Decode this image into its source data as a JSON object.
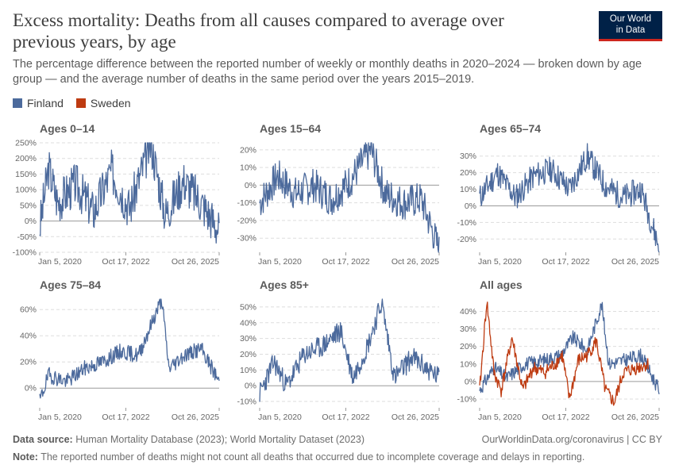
{
  "header": {
    "title": "Excess mortality: Deaths from all causes compared to average over previous years, by age",
    "subtitle": "The percentage difference between the reported number of weekly or monthly deaths in 2020–2024 — broken down by age group — and the average number of deaths in the same period over the years 2015–2019.",
    "logo_line1": "Our World",
    "logo_line2": "in Data"
  },
  "legend": [
    {
      "label": "Finland",
      "color": "#4c6a9c"
    },
    {
      "label": "Sweden",
      "color": "#be3b11"
    }
  ],
  "footer": {
    "source_label": "Data source:",
    "source_text": "Human Mortality Database (2023); World Mortality Dataset (2023)",
    "credit": "OurWorldinData.org/coronavirus | CC BY",
    "note_label": "Note:",
    "note_text": "The reported number of deaths might not count all deaths that occurred due to incomplete coverage and delays in reporting."
  },
  "chart_data": [
    {
      "type": "line",
      "title": "Ages 0–14",
      "x_ticks": [
        "Jan 5, 2020",
        "Oct 17, 2022",
        "Oct 26, 2025"
      ],
      "y_ticks": [
        "250%",
        "200%",
        "150%",
        "100%",
        "50%",
        "0%",
        "-50%",
        "-100%"
      ],
      "ylim": [
        -100,
        250
      ],
      "grid": true,
      "series": [
        {
          "name": "Finland",
          "color": "#4c6a9c",
          "anchors": [
            [
              0,
              -20
            ],
            [
              0.05,
              170
            ],
            [
              0.1,
              60
            ],
            [
              0.2,
              120
            ],
            [
              0.3,
              30
            ],
            [
              0.4,
              160
            ],
            [
              0.5,
              40
            ],
            [
              0.62,
              250
            ],
            [
              0.7,
              20
            ],
            [
              0.8,
              130
            ],
            [
              0.9,
              60
            ],
            [
              1,
              -30
            ]
          ],
          "noise": 70,
          "seed": 3
        }
      ]
    },
    {
      "type": "line",
      "title": "Ages 15–64",
      "x_ticks": [
        "Jan 5, 2020",
        "Oct 17, 2022",
        "Oct 26, 2025"
      ],
      "y_ticks": [
        "20%",
        "10%",
        "0%",
        "-10%",
        "-20%",
        "-30%"
      ],
      "ylim": [
        -38,
        24
      ],
      "grid": true,
      "series": [
        {
          "name": "Finland",
          "color": "#4c6a9c",
          "anchors": [
            [
              0,
              -10
            ],
            [
              0.1,
              5
            ],
            [
              0.2,
              -5
            ],
            [
              0.3,
              0
            ],
            [
              0.4,
              -8
            ],
            [
              0.5,
              2
            ],
            [
              0.62,
              20
            ],
            [
              0.7,
              -5
            ],
            [
              0.8,
              -10
            ],
            [
              0.9,
              -8
            ],
            [
              1,
              -37
            ]
          ],
          "noise": 10,
          "seed": 7
        }
      ]
    },
    {
      "type": "line",
      "title": "Ages 65–74",
      "x_ticks": [
        "Jan 5, 2020",
        "Oct 17, 2022",
        "Oct 26, 2025"
      ],
      "y_ticks": [
        "30%",
        "20%",
        "10%",
        "0%",
        "-10%",
        "-20%"
      ],
      "ylim": [
        -28,
        38
      ],
      "grid": true,
      "series": [
        {
          "name": "Finland",
          "color": "#4c6a9c",
          "anchors": [
            [
              0,
              5
            ],
            [
              0.1,
              20
            ],
            [
              0.2,
              5
            ],
            [
              0.3,
              18
            ],
            [
              0.4,
              22
            ],
            [
              0.5,
              10
            ],
            [
              0.6,
              30
            ],
            [
              0.7,
              12
            ],
            [
              0.8,
              5
            ],
            [
              0.9,
              10
            ],
            [
              1,
              -25
            ]
          ],
          "noise": 8,
          "seed": 11
        }
      ]
    },
    {
      "type": "line",
      "title": "Ages 75–84",
      "x_ticks": [
        "Jan 5, 2020",
        "Oct 17, 2022",
        "Oct 26, 2025"
      ],
      "y_ticks": [
        "60%",
        "40%",
        "20%",
        "0%"
      ],
      "ylim": [
        -15,
        68
      ],
      "grid": true,
      "series": [
        {
          "name": "Finland",
          "color": "#4c6a9c",
          "anchors": [
            [
              0,
              -10
            ],
            [
              0.05,
              10
            ],
            [
              0.15,
              5
            ],
            [
              0.25,
              15
            ],
            [
              0.35,
              20
            ],
            [
              0.45,
              28
            ],
            [
              0.55,
              25
            ],
            [
              0.68,
              68
            ],
            [
              0.72,
              15
            ],
            [
              0.8,
              25
            ],
            [
              0.9,
              30
            ],
            [
              1,
              5
            ]
          ],
          "noise": 6,
          "seed": 19
        }
      ]
    },
    {
      "type": "line",
      "title": "Ages 85+",
      "x_ticks": [
        "Jan 5, 2020",
        "Oct 17, 2022",
        "Oct 26, 2025"
      ],
      "y_ticks": [
        "50%",
        "40%",
        "30%",
        "20%",
        "10%",
        "0%",
        "-10%"
      ],
      "ylim": [
        -14,
        55
      ],
      "grid": true,
      "series": [
        {
          "name": "Finland",
          "color": "#4c6a9c",
          "anchors": [
            [
              0,
              -5
            ],
            [
              0.08,
              15
            ],
            [
              0.15,
              0
            ],
            [
              0.25,
              20
            ],
            [
              0.35,
              25
            ],
            [
              0.45,
              35
            ],
            [
              0.52,
              5
            ],
            [
              0.6,
              25
            ],
            [
              0.68,
              53
            ],
            [
              0.75,
              5
            ],
            [
              0.85,
              18
            ],
            [
              1,
              5
            ]
          ],
          "noise": 7,
          "seed": 23
        }
      ]
    },
    {
      "type": "line",
      "title": "All ages",
      "x_ticks": [
        "Jan 5, 2020",
        "Oct 17, 2022",
        "Oct 26, 2025"
      ],
      "y_ticks": [
        "40%",
        "30%",
        "20%",
        "10%",
        "0%",
        "-10%"
      ],
      "ylim": [
        -15,
        47
      ],
      "grid": true,
      "series": [
        {
          "name": "Finland",
          "color": "#4c6a9c",
          "anchors": [
            [
              0,
              -5
            ],
            [
              0.08,
              8
            ],
            [
              0.15,
              2
            ],
            [
              0.25,
              10
            ],
            [
              0.35,
              12
            ],
            [
              0.45,
              15
            ],
            [
              0.52,
              25
            ],
            [
              0.6,
              18
            ],
            [
              0.68,
              44
            ],
            [
              0.72,
              10
            ],
            [
              0.8,
              12
            ],
            [
              0.9,
              15
            ],
            [
              1,
              -5
            ]
          ],
          "noise": 4,
          "seed": 31
        },
        {
          "name": "Sweden",
          "color": "#be3b11",
          "anchors": [
            [
              0,
              -5
            ],
            [
              0.04,
              46
            ],
            [
              0.08,
              5
            ],
            [
              0.12,
              -5
            ],
            [
              0.18,
              25
            ],
            [
              0.24,
              -5
            ],
            [
              0.3,
              8
            ],
            [
              0.36,
              5
            ],
            [
              0.42,
              10
            ],
            [
              0.46,
              15
            ],
            [
              0.5,
              -10
            ],
            [
              0.55,
              12
            ],
            [
              0.6,
              15
            ],
            [
              0.65,
              23
            ],
            [
              0.7,
              -5
            ],
            [
              0.75,
              -12
            ],
            [
              0.8,
              5
            ],
            [
              0.88,
              8
            ],
            [
              0.94,
              10
            ]
          ],
          "noise": 4,
          "seed": 41
        }
      ]
    }
  ]
}
